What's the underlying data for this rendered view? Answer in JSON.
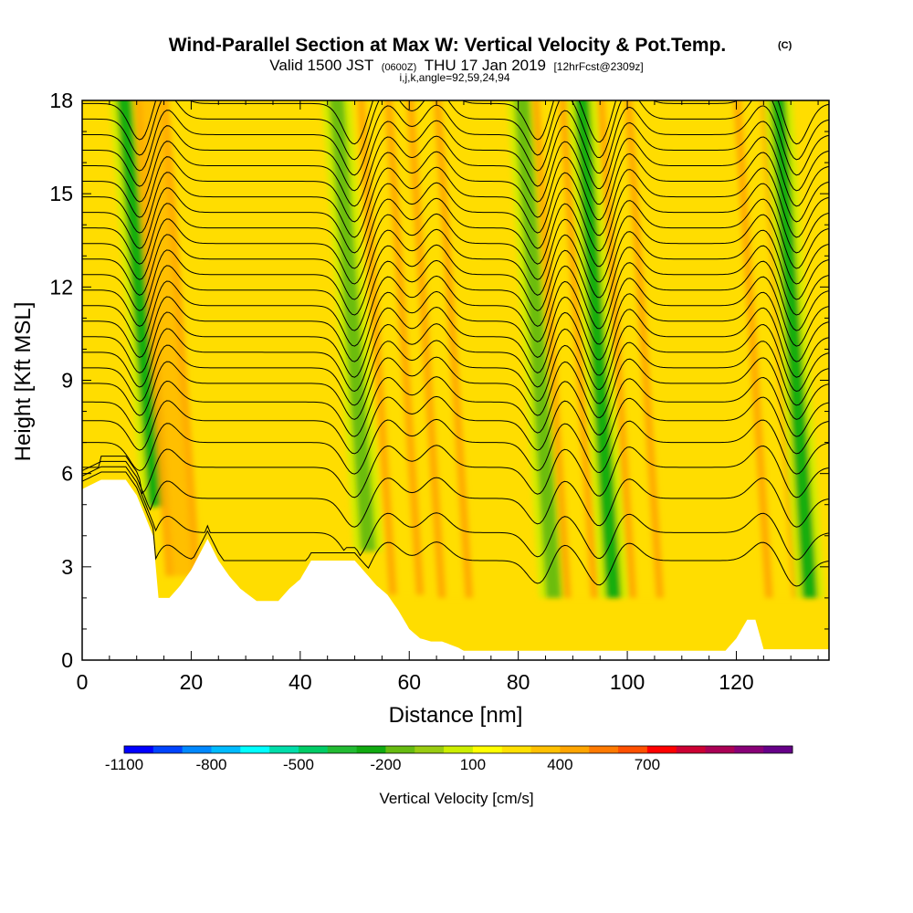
{
  "header": {
    "title": "Wind-Parallel Section at Max W: Vertical Velocity & Pot.Temp.",
    "copyright": "(C)",
    "valid_prefix": "Valid 1500 JST",
    "utc": "(0600Z)",
    "valid_date": "THU 17 Jan 2019",
    "forecast": "[12hrFcst@2309z]",
    "grid_info": "i,j,k,angle=92,59,24,94"
  },
  "chart_data": {
    "type": "heatmap",
    "title": "Wind-Parallel Section at Max W: Vertical Velocity & Pot.Temp.",
    "xlabel": "Distance [nm]",
    "ylabel": "Height [Kft MSL]",
    "xlim": [
      0,
      137
    ],
    "ylim": [
      0,
      18
    ],
    "x_ticks": [
      0,
      20,
      40,
      60,
      80,
      100,
      120
    ],
    "y_ticks": [
      0,
      3,
      6,
      9,
      12,
      15,
      18
    ],
    "grid": false,
    "colorbar": {
      "title": "Vertical Velocity [cm/s]",
      "placement": "bottom",
      "tick_labels": [
        "-1100",
        "-800",
        "-500",
        "-200",
        "100",
        "400",
        "700"
      ],
      "colors": [
        "#0000ff",
        "#0044ff",
        "#0088ff",
        "#00bbff",
        "#00ffff",
        "#00ddaa",
        "#00cc66",
        "#22bb33",
        "#11aa11",
        "#66bb11",
        "#99cc11",
        "#ccee00",
        "#ffff00",
        "#ffe000",
        "#ffc000",
        "#ffa500",
        "#ff7a00",
        "#ff5000",
        "#ff0000",
        "#cc0033",
        "#aa0055",
        "#880077",
        "#660088"
      ]
    },
    "terrain_profile": {
      "x": [
        0,
        3.5,
        8,
        10,
        13,
        14,
        16,
        18,
        20,
        23,
        25,
        27,
        29,
        32,
        36,
        38,
        40,
        42,
        46,
        50,
        52,
        54,
        56,
        58,
        60,
        62,
        64,
        66,
        69,
        70,
        100,
        118,
        120,
        122,
        123.5,
        125,
        137
      ],
      "h": [
        5.5,
        5.8,
        5.8,
        5.3,
        4.0,
        2.0,
        2.0,
        2.4,
        2.9,
        3.9,
        3.2,
        2.7,
        2.3,
        1.9,
        1.9,
        2.3,
        2.6,
        3.2,
        3.2,
        3.2,
        2.8,
        2.4,
        2.1,
        1.6,
        1.0,
        0.7,
        0.6,
        0.6,
        0.4,
        0.3,
        0.3,
        0.3,
        0.7,
        1.3,
        1.3,
        0.35,
        0.35
      ]
    },
    "velocity_features": [
      {
        "kind": "downdraft",
        "x": 12,
        "w_cm_s": -300
      },
      {
        "kind": "updraft",
        "x": 17,
        "w_cm_s": 300
      },
      {
        "kind": "downdraft",
        "x": 51,
        "w_cm_s": -200
      },
      {
        "kind": "updraft",
        "x": 58,
        "w_cm_s": 250
      },
      {
        "kind": "updraft",
        "x": 67,
        "w_cm_s": 250
      },
      {
        "kind": "downdraft",
        "x": 85,
        "w_cm_s": -150
      },
      {
        "kind": "updraft",
        "x": 90,
        "w_cm_s": 200
      },
      {
        "kind": "downdraft",
        "x": 96,
        "w_cm_s": -300
      },
      {
        "kind": "updraft",
        "x": 102,
        "w_cm_s": 200
      },
      {
        "kind": "updraft",
        "x": 127,
        "w_cm_s": 200
      },
      {
        "kind": "downdraft",
        "x": 132,
        "w_cm_s": -250
      }
    ],
    "isentrope_heights_kft": [
      3.2,
      4.1,
      5.2,
      6.2,
      7.0,
      7.7,
      8.3,
      8.9,
      9.4,
      9.9,
      10.4,
      10.9,
      11.4,
      11.9,
      12.4,
      12.9,
      13.4,
      13.9,
      14.4,
      14.9,
      15.4,
      15.9,
      16.4,
      16.9,
      17.4,
      17.9
    ]
  }
}
